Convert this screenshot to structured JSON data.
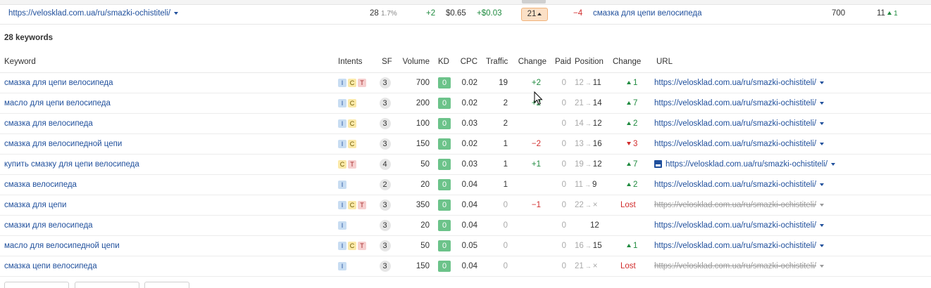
{
  "summary_row": {
    "url": "https://velosklad.com.ua/ru/smazki-ochistiteli/",
    "keywords_count": "28",
    "keywords_share": "1.7%",
    "change": "+2",
    "cpc": "$0.65",
    "cpc_change": "+$0.03",
    "position": "21",
    "position_change": "−4",
    "top_keyword": "смазка для цепи велосипеда",
    "top_volume": "700",
    "top_position": "11",
    "top_position_change": "1"
  },
  "keywords_label": "28 keywords",
  "columns": {
    "keyword": "Keyword",
    "intents": "Intents",
    "sf": "SF",
    "volume": "Volume",
    "kd": "KD",
    "cpc": "CPC",
    "traffic": "Traffic",
    "change": "Change",
    "paid": "Paid",
    "position": "Position",
    "pos_change": "Change",
    "url": "URL"
  },
  "rows": [
    {
      "keyword": "смазка для цепи велосипеда",
      "intents": [
        "I",
        "C",
        "T"
      ],
      "sf": "3",
      "volume": "700",
      "kd": "0",
      "cpc": "0.02",
      "traffic": "19",
      "change": "+2",
      "change_type": "up",
      "paid": "0",
      "pos_from": "12",
      "pos_to": "11",
      "pos_change": "1",
      "pos_change_type": "up",
      "url": "https://velosklad.com.ua/ru/smazki-ochistiteli/",
      "url_state": "normal"
    },
    {
      "keyword": "масло для цепи велосипеда",
      "intents": [
        "I",
        "C"
      ],
      "sf": "3",
      "volume": "200",
      "kd": "0",
      "cpc": "0.02",
      "traffic": "2",
      "change": "+2",
      "change_type": "up",
      "paid": "0",
      "pos_from": "21",
      "pos_to": "14",
      "pos_change": "7",
      "pos_change_type": "up",
      "url": "https://velosklad.com.ua/ru/smazki-ochistiteli/",
      "url_state": "normal"
    },
    {
      "keyword": "смазка для велосипеда",
      "intents": [
        "I",
        "C"
      ],
      "sf": "3",
      "volume": "100",
      "kd": "0",
      "cpc": "0.03",
      "traffic": "2",
      "change": "",
      "change_type": "none",
      "paid": "0",
      "pos_from": "14",
      "pos_to": "12",
      "pos_change": "2",
      "pos_change_type": "up",
      "url": "https://velosklad.com.ua/ru/smazki-ochistiteli/",
      "url_state": "normal"
    },
    {
      "keyword": "смазка для велосипедной цепи",
      "intents": [
        "I",
        "C"
      ],
      "sf": "3",
      "volume": "150",
      "kd": "0",
      "cpc": "0.02",
      "traffic": "1",
      "change": "−2",
      "change_type": "down",
      "paid": "0",
      "pos_from": "13",
      "pos_to": "16",
      "pos_change": "3",
      "pos_change_type": "down",
      "url": "https://velosklad.com.ua/ru/smazki-ochistiteli/",
      "url_state": "normal"
    },
    {
      "keyword": "купить смазку для цепи велосипеда",
      "intents": [
        "C",
        "T"
      ],
      "sf": "4",
      "volume": "50",
      "kd": "0",
      "cpc": "0.03",
      "traffic": "1",
      "change": "+1",
      "change_type": "up",
      "paid": "0",
      "pos_from": "19",
      "pos_to": "12",
      "pos_change": "7",
      "pos_change_type": "up",
      "url": "https://velosklad.com.ua/ru/smazki-ochistiteli/",
      "url_state": "image"
    },
    {
      "keyword": "смазка велосипеда",
      "intents": [
        "I"
      ],
      "sf": "2",
      "volume": "20",
      "kd": "0",
      "cpc": "0.04",
      "traffic": "1",
      "change": "",
      "change_type": "none",
      "paid": "0",
      "pos_from": "11",
      "pos_to": "9",
      "pos_change": "2",
      "pos_change_type": "up",
      "url": "https://velosklad.com.ua/ru/smazki-ochistiteli/",
      "url_state": "normal"
    },
    {
      "keyword": "смазка для цепи",
      "intents": [
        "I",
        "C",
        "T"
      ],
      "sf": "3",
      "volume": "350",
      "kd": "0",
      "cpc": "0.04",
      "traffic": "0",
      "change": "−1",
      "change_type": "down",
      "paid": "0",
      "pos_from": "22",
      "pos_to": "×",
      "pos_change": "Lost",
      "pos_change_type": "lost",
      "url": "https://velosklad.com.ua/ru/smazki-ochistiteli/",
      "url_state": "lost"
    },
    {
      "keyword": "смазки для велосипеда",
      "intents": [
        "I"
      ],
      "sf": "3",
      "volume": "20",
      "kd": "0",
      "cpc": "0.04",
      "traffic": "0",
      "change": "",
      "change_type": "none",
      "paid": "0",
      "pos_from": "",
      "pos_to": "12",
      "pos_change": "",
      "pos_change_type": "none",
      "url": "https://velosklad.com.ua/ru/smazki-ochistiteli/",
      "url_state": "normal"
    },
    {
      "keyword": "масло для велосипедной цепи",
      "intents": [
        "I",
        "C",
        "T"
      ],
      "sf": "3",
      "volume": "50",
      "kd": "0",
      "cpc": "0.05",
      "traffic": "0",
      "change": "",
      "change_type": "none",
      "paid": "0",
      "pos_from": "16",
      "pos_to": "15",
      "pos_change": "1",
      "pos_change_type": "up",
      "url": "https://velosklad.com.ua/ru/smazki-ochistiteli/",
      "url_state": "normal"
    },
    {
      "keyword": "смазка цепи велосипеда",
      "intents": [
        "I"
      ],
      "sf": "3",
      "volume": "150",
      "kd": "0",
      "cpc": "0.04",
      "traffic": "0",
      "change": "",
      "change_type": "none",
      "paid": "0",
      "pos_from": "21",
      "pos_to": "×",
      "pos_change": "Lost",
      "pos_change_type": "lost",
      "url": "https://velosklad.com.ua/ru/smazki-ochistiteli/",
      "url_state": "lost"
    }
  ],
  "colors": {
    "link": "#1f4f9c",
    "positive": "#1e8a3e",
    "negative": "#d12b2b",
    "kd_easy": "#6cc38a",
    "position_badge": "#fbe0c6"
  }
}
